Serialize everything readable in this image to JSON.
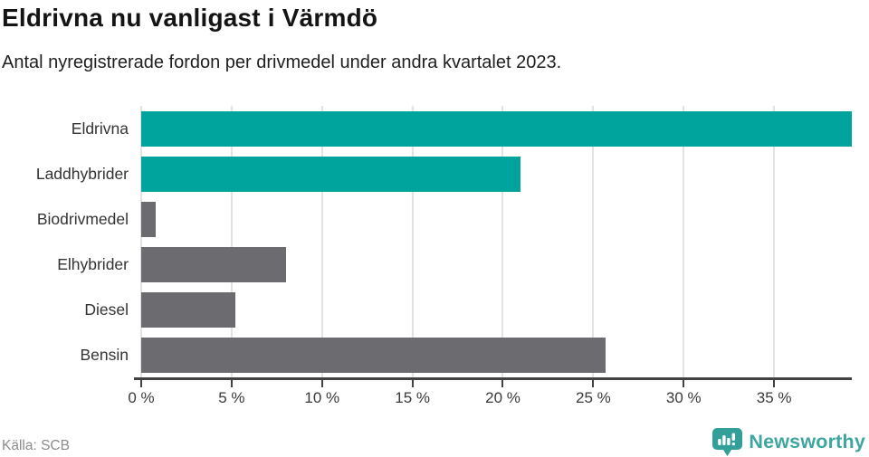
{
  "header": {
    "title": "Eldrivna nu vanligast i Värmdö",
    "subtitle": "Antal nyregistrerade fordon per drivmedel under andra kvartalet 2023."
  },
  "footer": {
    "source": "Källa: SCB",
    "brand_name": "Newsworthy"
  },
  "colors": {
    "teal_bar": "#00a49c",
    "gray_bar": "#6b6b70",
    "grid": "#e3e3e3",
    "axis": "#424242",
    "brand_teal": "#339f99",
    "brand_text": "#3fa5a0"
  },
  "chart_data": {
    "type": "bar",
    "orientation": "horizontal",
    "title": "Eldrivna nu vanligast i Värmdö",
    "subtitle": "Antal nyregistrerade fordon per drivmedel under andra kvartalet 2023.",
    "categories": [
      "Eldrivna",
      "Laddhybrider",
      "Biodrivmedel",
      "Elhybrider",
      "Diesel",
      "Bensin"
    ],
    "values": [
      39.3,
      21.0,
      0.8,
      8.0,
      5.2,
      25.7
    ],
    "unit": "%",
    "series_colors": [
      "teal",
      "teal",
      "gray",
      "gray",
      "gray",
      "gray"
    ],
    "xlim": [
      0,
      39.3
    ],
    "xticks": [
      0,
      5,
      10,
      15,
      20,
      25,
      30,
      35
    ],
    "xtick_suffix": " %",
    "grid": true,
    "legend": false,
    "source": "Källa: SCB"
  }
}
